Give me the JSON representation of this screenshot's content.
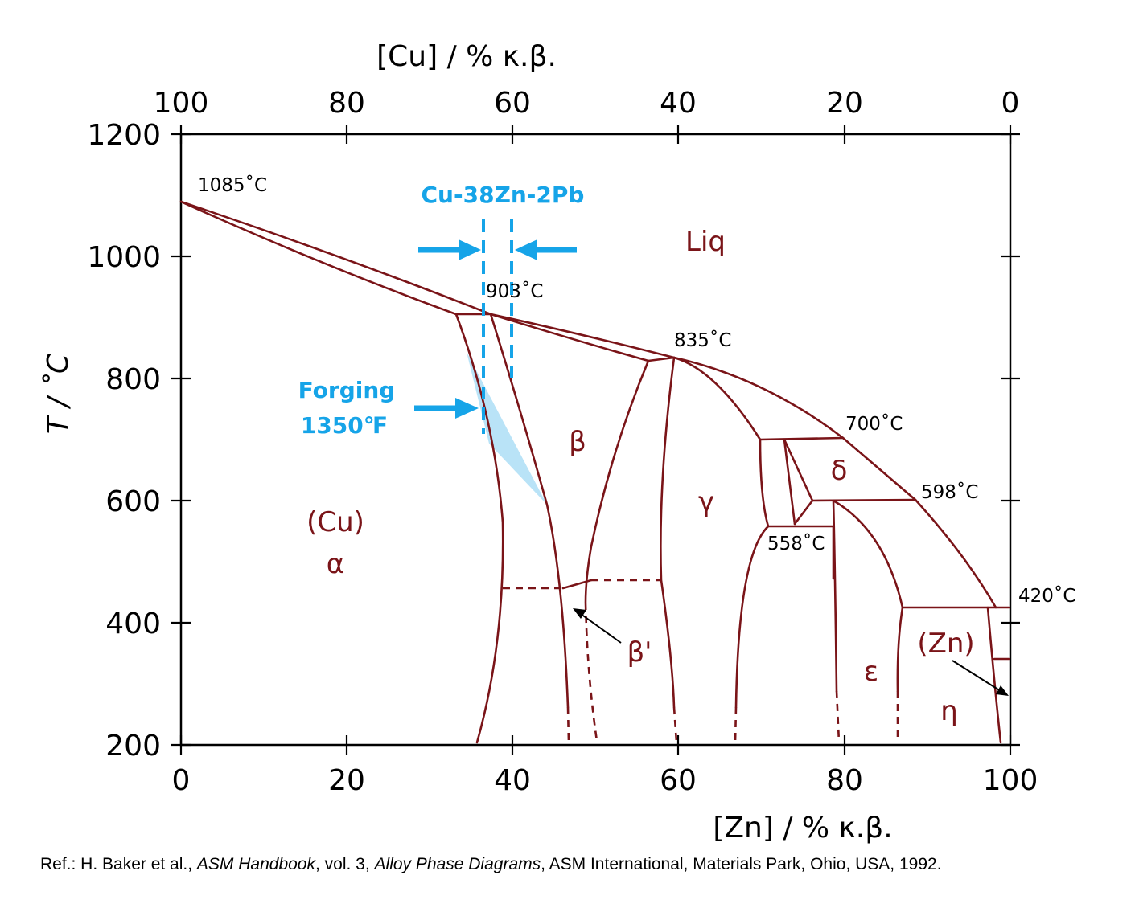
{
  "axes": {
    "top_title": "[Cu] / % κ.β.",
    "bottom_title": "[Zn] / % κ.β.",
    "left_title": "T / ˚C",
    "top_ticks": [
      "100",
      "80",
      "60",
      "40",
      "20",
      "0"
    ],
    "bottom_ticks": [
      "0",
      "20",
      "40",
      "60",
      "80",
      "100"
    ],
    "left_ticks": [
      "1200",
      "1000",
      "800",
      "600",
      "400",
      "200"
    ],
    "zn_range": [
      0,
      100
    ],
    "t_range": [
      200,
      1200
    ]
  },
  "temperature_labels": {
    "t1085": "1085˚C",
    "t903": "903˚C",
    "t835": "835˚C",
    "t700": "700˚C",
    "t598": "598˚C",
    "t558": "558˚C",
    "t420": "420˚C"
  },
  "phase_labels": {
    "liq": "Liq",
    "cu": "(Cu)",
    "alpha": "α",
    "beta": "β",
    "beta_prime": "β'",
    "gamma": "γ",
    "delta": "δ",
    "epsilon": "ε",
    "zn": "(Zn)",
    "eta": "η"
  },
  "annotations": {
    "alloy": "Cu-38Zn-2Pb",
    "forging_line1": "Forging",
    "forging_line2": "1350℉"
  },
  "colors": {
    "phase_lines": "#7a1418",
    "highlight": "#16a4e8",
    "forging_region": "#b9e3f7"
  },
  "reference": {
    "prefix": "Ref.: H. Baker et al., ",
    "book": "ASM Handbook",
    "mid": ", vol. 3, ",
    "volume_title": "Alloy Phase Diagrams",
    "suffix": ", ASM International, Materials Park, Ohio, USA, 1992."
  }
}
